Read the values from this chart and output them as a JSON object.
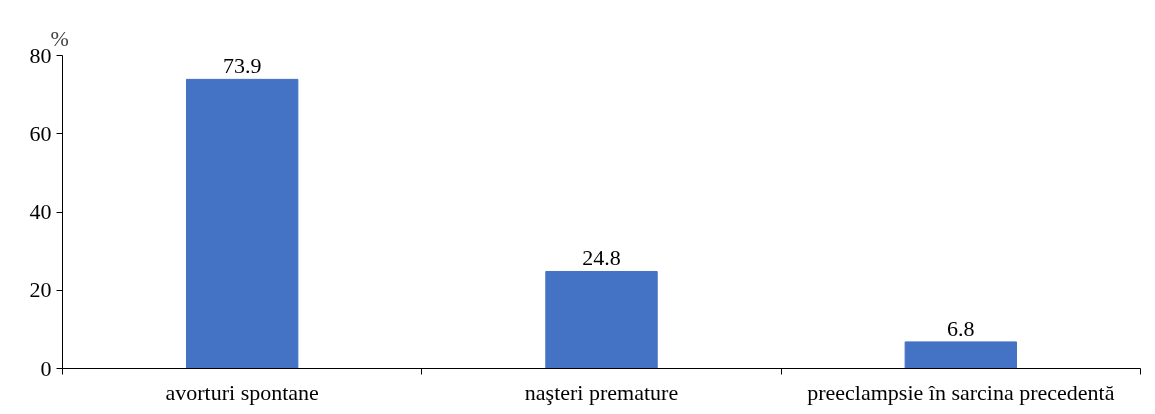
{
  "chart_data": {
    "type": "bar",
    "ylabel": "%",
    "categories": [
      "avorturi spontane",
      "naşteri premature",
      "preeclampsie în sarcina precedentă"
    ],
    "values": [
      73.9,
      24.8,
      6.8
    ],
    "color": "#4472c4",
    "ylim": [
      0,
      80
    ],
    "yticks": [
      0,
      20,
      40,
      60,
      80
    ],
    "grid": false,
    "data_labels": true
  }
}
